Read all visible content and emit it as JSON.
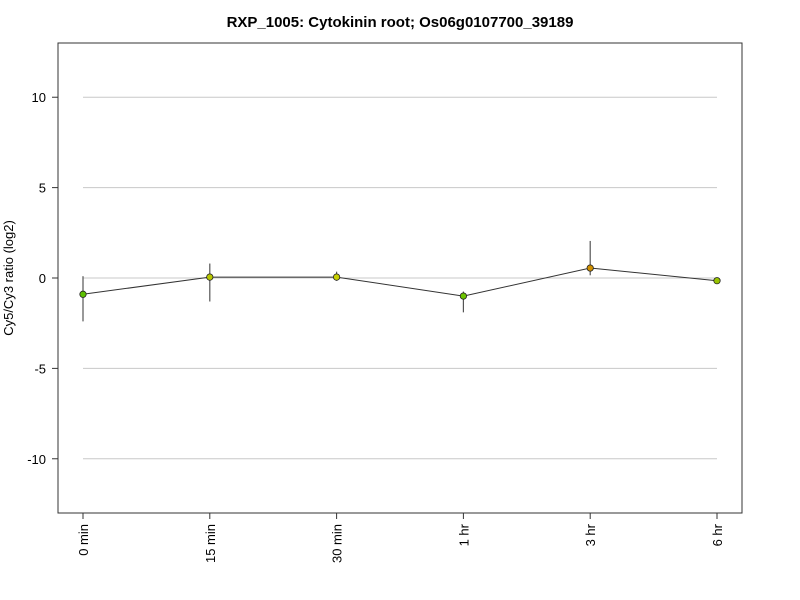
{
  "chart_data": {
    "type": "line",
    "title": "RXP_1005: Cytokinin root; Os06g0107700_39189",
    "xlabel": "",
    "ylabel": "Cy5/Cy3 ratio (log2)",
    "ylim": [
      -13,
      13
    ],
    "yticks": [
      -10,
      -5,
      0,
      5,
      10
    ],
    "grid": true,
    "categories": [
      "0 min",
      "15 min",
      "30 min",
      "1 hr",
      "3 hr",
      "6 hr"
    ],
    "series": [
      {
        "values": [
          -0.9,
          0.05,
          0.05,
          -1.0,
          0.55,
          -0.15
        ],
        "err_low": [
          -2.4,
          -1.3,
          -0.15,
          -1.9,
          0.15,
          -0.3
        ],
        "err_high": [
          0.1,
          0.8,
          0.35,
          -0.75,
          2.05,
          -0.05
        ],
        "point_colors": [
          "#5cc000",
          "#b8c800",
          "#c8d000",
          "#6cc400",
          "#d09000",
          "#98c400"
        ]
      }
    ]
  }
}
